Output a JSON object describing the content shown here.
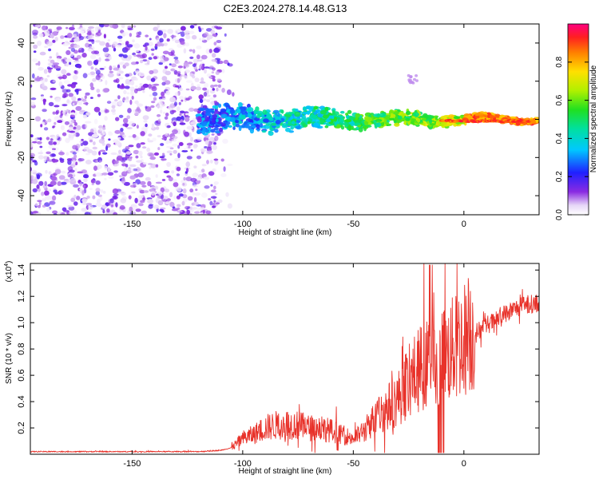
{
  "title": "C2E3.2024.278.14.48.G13",
  "chart_data": [
    {
      "type": "heatmap",
      "xlabel": "Height of straight line (km)",
      "ylabel": "Frequency (Hz)",
      "xlim": [
        -196,
        34
      ],
      "ylim": [
        -50,
        50
      ],
      "x_ticks": [
        -150,
        -100,
        -50,
        0
      ],
      "y_ticks": [
        -40,
        -20,
        0,
        20,
        40
      ],
      "colorbar": {
        "label": "Normalized spectral amplitude",
        "range": [
          0,
          1
        ],
        "ticks": [
          0.0,
          0.2,
          0.4,
          0.6,
          0.8
        ],
        "tick_labels": [
          "0.0",
          "0.2",
          "0.4",
          "0.6",
          "0.8"
        ]
      },
      "features": [
        {
          "region": "noise",
          "x_range": [
            -196,
            -110
          ],
          "y_range": [
            -50,
            50
          ],
          "amplitude": [
            0.02,
            0.18
          ]
        },
        {
          "region": "signal",
          "x_range": [
            -120,
            34
          ],
          "y_center": 0,
          "amplitude_peak": 0.95
        }
      ]
    },
    {
      "type": "line",
      "xlabel": "Height of straight line (km)",
      "ylabel": "SNR (10 * v/v)",
      "y_scale_label": "(x10",
      "y_scale_exponent": "4",
      "xlim": [
        -196,
        34
      ],
      "ylim": [
        0,
        1.45
      ],
      "x_ticks": [
        -150,
        -100,
        -50,
        0
      ],
      "y_ticks": [
        0.2,
        0.4,
        0.6,
        0.8,
        1.0,
        1.2,
        1.4
      ],
      "y_tick_labels": [
        "0.2",
        "0.4",
        "0.6",
        "0.8",
        "1.0",
        "1.2",
        "1.4"
      ],
      "color": "#e8322a",
      "series": [
        {
          "x": [
            -196,
            -180,
            -160,
            -140,
            -120,
            -110,
            -105,
            -100,
            -95,
            -90,
            -85,
            -80,
            -75,
            -70,
            -65,
            -60,
            -55,
            -50,
            -45,
            -40,
            -35,
            -30,
            -25,
            -20,
            -15,
            -10,
            -5,
            0,
            5,
            10,
            15,
            20,
            25,
            30,
            34
          ],
          "y": [
            0.02,
            0.02,
            0.02,
            0.02,
            0.02,
            0.03,
            0.05,
            0.12,
            0.15,
            0.2,
            0.22,
            0.23,
            0.22,
            0.2,
            0.2,
            0.18,
            0.15,
            0.12,
            0.18,
            0.28,
            0.35,
            0.42,
            0.55,
            0.65,
            0.7,
            0.72,
            0.8,
            0.88,
            0.92,
            0.98,
            1.02,
            1.08,
            1.12,
            1.14,
            1.15
          ]
        }
      ]
    }
  ]
}
